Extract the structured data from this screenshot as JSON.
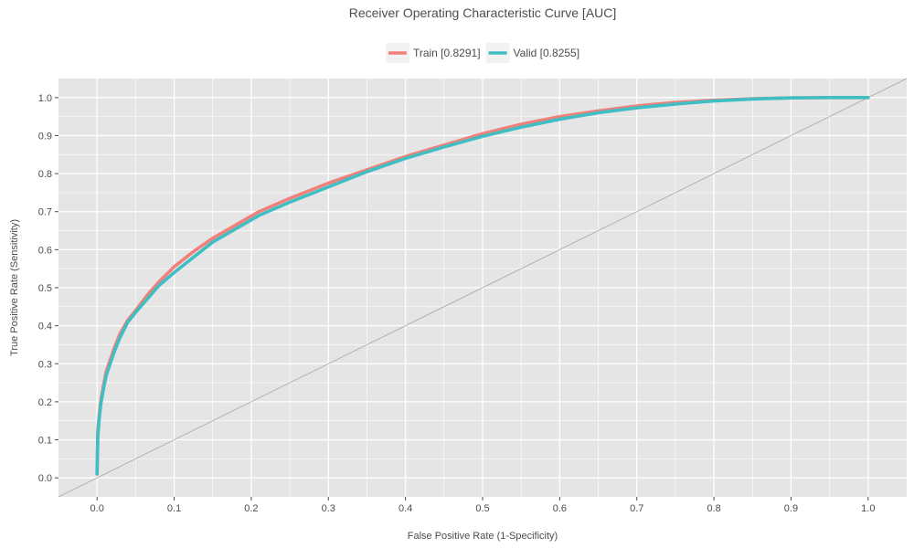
{
  "chart_data": {
    "type": "line",
    "title": "Receiver Operating Characteristic Curve [AUC]",
    "xlabel": "False Positive Rate (1-Specificity)",
    "ylabel": "True Positive Rate (Sensitivity)",
    "xlim": [
      -0.05,
      1.05
    ],
    "ylim": [
      -0.05,
      1.05
    ],
    "x_ticks": [
      0.0,
      0.1,
      0.2,
      0.3,
      0.4,
      0.5,
      0.6,
      0.7,
      0.8,
      0.9,
      1.0
    ],
    "x_tick_labels": [
      "0.0",
      "0.1",
      "0.2",
      "0.3",
      "0.4",
      "0.5",
      "0.6",
      "0.7",
      "0.8",
      "0.9",
      "1.0"
    ],
    "y_ticks": [
      0.0,
      0.1,
      0.2,
      0.3,
      0.4,
      0.5,
      0.6,
      0.7,
      0.8,
      0.9,
      1.0
    ],
    "y_tick_labels": [
      "0.0",
      "0.1",
      "0.2",
      "0.3",
      "0.4",
      "0.5",
      "0.6",
      "0.7",
      "0.8",
      "0.9",
      "1.0"
    ],
    "grid": true,
    "legend_position": "top",
    "background_color": "#e5e5e5",
    "grid_color": "#ffffff",
    "reference_line": {
      "x": [
        -0.05,
        1.05
      ],
      "y": [
        -0.05,
        1.05
      ],
      "color": "#a6a6a6"
    },
    "series": [
      {
        "name": "Train [0.8291]",
        "color": "#f1807a",
        "x": [
          0.0,
          0.001,
          0.003,
          0.005,
          0.008,
          0.012,
          0.017,
          0.023,
          0.03,
          0.04,
          0.05,
          0.065,
          0.08,
          0.1,
          0.125,
          0.15,
          0.18,
          0.21,
          0.25,
          0.3,
          0.35,
          0.4,
          0.45,
          0.5,
          0.55,
          0.6,
          0.65,
          0.7,
          0.75,
          0.8,
          0.85,
          0.9,
          0.95,
          1.0
        ],
        "y": [
          0.01,
          0.12,
          0.17,
          0.205,
          0.24,
          0.28,
          0.31,
          0.345,
          0.38,
          0.415,
          0.44,
          0.48,
          0.515,
          0.555,
          0.595,
          0.63,
          0.665,
          0.7,
          0.735,
          0.775,
          0.81,
          0.845,
          0.875,
          0.905,
          0.93,
          0.95,
          0.965,
          0.978,
          0.987,
          0.993,
          0.997,
          0.999,
          1.0,
          1.0
        ]
      },
      {
        "name": "Valid [0.8255]",
        "color": "#3fbfc4",
        "x": [
          0.0,
          0.001,
          0.003,
          0.005,
          0.008,
          0.012,
          0.017,
          0.023,
          0.03,
          0.04,
          0.05,
          0.065,
          0.08,
          0.1,
          0.125,
          0.15,
          0.18,
          0.21,
          0.25,
          0.3,
          0.35,
          0.4,
          0.45,
          0.5,
          0.55,
          0.6,
          0.65,
          0.7,
          0.75,
          0.8,
          0.85,
          0.9,
          0.95,
          1.0
        ],
        "y": [
          0.01,
          0.11,
          0.16,
          0.195,
          0.23,
          0.27,
          0.3,
          0.335,
          0.37,
          0.41,
          0.435,
          0.47,
          0.505,
          0.54,
          0.58,
          0.62,
          0.655,
          0.69,
          0.725,
          0.765,
          0.805,
          0.84,
          0.87,
          0.898,
          0.922,
          0.943,
          0.96,
          0.973,
          0.983,
          0.991,
          0.996,
          0.999,
          1.0,
          1.0
        ]
      }
    ]
  }
}
